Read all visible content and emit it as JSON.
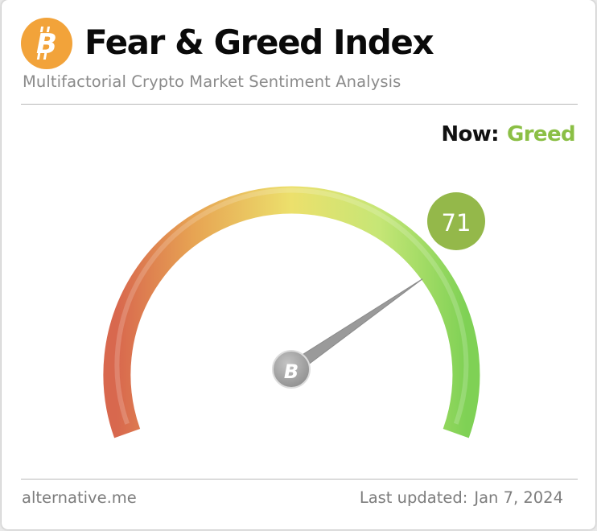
{
  "header": {
    "title": "Fear & Greed Index",
    "subtitle": "Multifactorial Crypto Market Sentiment Analysis",
    "logo_icon": "bitcoin-icon",
    "logo_color": "#f7931a"
  },
  "status": {
    "now_label": "Now:",
    "classification": "Greed",
    "classification_color": "#8bbf45"
  },
  "gauge": {
    "value": 71,
    "value_text": "71",
    "min": 0,
    "max": 100,
    "badge_color": "#94b84a",
    "colors": [
      "#d96a4f",
      "#e8a552",
      "#ece46e",
      "#c2e677",
      "#80d254"
    ],
    "needle_hub_icon": "bitcoin-icon"
  },
  "footer": {
    "source": "alternative.me",
    "updated_label": "Last updated:",
    "updated_date": "Jan 7, 2024"
  }
}
